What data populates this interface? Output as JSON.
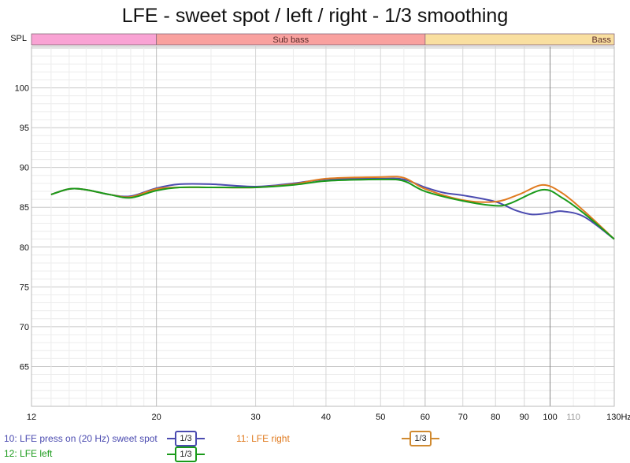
{
  "chart_data": {
    "type": "line",
    "title": "LFE - sweet spot / left / right - 1/3 smoothing",
    "ylabel": "SPL",
    "xlabel": "Hz",
    "xscale": "log",
    "xlim": [
      12,
      130
    ],
    "ylim": [
      60,
      105.2
    ],
    "yticks": [
      65,
      70,
      75,
      80,
      85,
      90,
      95,
      100
    ],
    "xticks": [
      {
        "v": 12,
        "l": "12"
      },
      {
        "v": 20,
        "l": "20"
      },
      {
        "v": 30,
        "l": "30"
      },
      {
        "v": 40,
        "l": "40"
      },
      {
        "v": 50,
        "l": "50"
      },
      {
        "v": 60,
        "l": "60"
      },
      {
        "v": 70,
        "l": "70"
      },
      {
        "v": 80,
        "l": "80"
      },
      {
        "v": 90,
        "l": "90"
      },
      {
        "v": 100,
        "l": "100"
      },
      {
        "v": 110,
        "l": "110"
      },
      {
        "v": 130,
        "l": "130Hz"
      }
    ],
    "bands": [
      {
        "from": 12,
        "to": 20,
        "label": "",
        "color": "#f9a3d4"
      },
      {
        "from": 20,
        "to": 60,
        "label": "Sub bass",
        "color": "#f9a19f"
      },
      {
        "from": 60,
        "to": 130,
        "label": "Bass",
        "color": "#f9dfa0"
      }
    ],
    "grid": true,
    "series": [
      {
        "name": "10: LFE press on (20 Hz) sweet spot",
        "smoothing": "1/3",
        "color": "#4b4bb0",
        "x": [
          13,
          14,
          15,
          16.5,
          18,
          20,
          22,
          25,
          30,
          35,
          40,
          50,
          55,
          60,
          65,
          70,
          80,
          87,
          93,
          100,
          105,
          115,
          130
        ],
        "y": [
          86.6,
          87.3,
          87.2,
          86.6,
          86.4,
          87.4,
          87.9,
          87.9,
          87.6,
          88.0,
          88.5,
          88.6,
          88.5,
          87.5,
          86.8,
          86.5,
          85.7,
          84.6,
          84.1,
          84.3,
          84.5,
          83.8,
          81.0
        ]
      },
      {
        "name": "11: LFE right",
        "smoothing": "1/3",
        "color": "#e07b20",
        "x": [
          13,
          14,
          15,
          16.5,
          18,
          20,
          22,
          25,
          30,
          35,
          40,
          50,
          55,
          60,
          70,
          80,
          88,
          97,
          105,
          115,
          130
        ],
        "y": [
          86.6,
          87.3,
          87.2,
          86.6,
          86.3,
          87.3,
          87.5,
          87.5,
          87.5,
          87.9,
          88.6,
          88.8,
          88.7,
          87.3,
          85.9,
          85.7,
          86.6,
          87.8,
          86.8,
          84.5,
          81.0
        ]
      },
      {
        "name": "12: LFE left",
        "smoothing": "1/3",
        "color": "#1a9a1a",
        "x": [
          13,
          14,
          15,
          16.5,
          18,
          20,
          22,
          25,
          30,
          35,
          40,
          50,
          55,
          60,
          70,
          80,
          85,
          97,
          105,
          115,
          130
        ],
        "y": [
          86.6,
          87.3,
          87.2,
          86.6,
          86.2,
          87.1,
          87.5,
          87.5,
          87.5,
          87.8,
          88.3,
          88.5,
          88.3,
          87.0,
          85.8,
          85.2,
          85.5,
          87.2,
          86.2,
          84.2,
          81.0
        ]
      }
    ]
  }
}
